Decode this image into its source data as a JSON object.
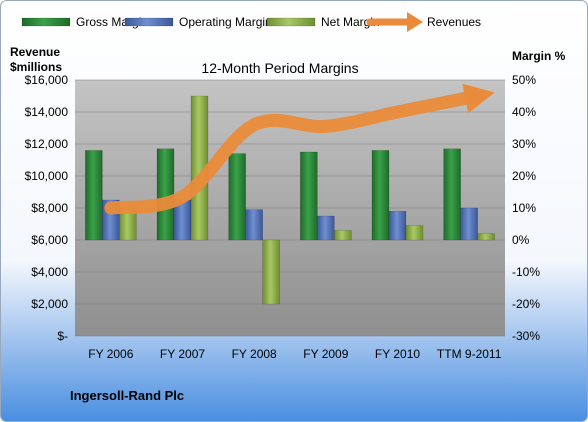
{
  "chart_data": {
    "type": "bar",
    "title": "12-Month Period Margins",
    "company": "Ingersoll-Rand Plc",
    "categories": [
      "FY 2006",
      "FY 2007",
      "FY 2008",
      "FY 2009",
      "FY 2010",
      "TTM 9-2011"
    ],
    "left_axis": {
      "label_line1": "Revenue",
      "label_line2": "$millions",
      "range": [
        0,
        16000
      ],
      "ticks": [
        0,
        2000,
        4000,
        6000,
        8000,
        10000,
        12000,
        14000,
        16000
      ],
      "tick_labels": [
        "$-",
        "$2,000",
        "$4,000",
        "$6,000",
        "$8,000",
        "$10,000",
        "$12,000",
        "$14,000",
        "$16,000"
      ]
    },
    "right_axis": {
      "label": "Margin %",
      "range": [
        -30,
        50
      ],
      "ticks": [
        -30,
        -20,
        -10,
        0,
        10,
        20,
        30,
        40,
        50
      ],
      "tick_labels": [
        "-30%",
        "-20%",
        "-10%",
        "0%",
        "10%",
        "20%",
        "30%",
        "40%",
        "50%"
      ]
    },
    "series": [
      {
        "name": "Gross Margin",
        "axis": "right",
        "kind": "bar",
        "values": [
          28,
          28.5,
          27,
          27.5,
          28,
          28.5
        ]
      },
      {
        "name": "Operating Margin",
        "axis": "right",
        "kind": "bar",
        "values": [
          12.5,
          12.5,
          9.5,
          7.5,
          9,
          10
        ]
      },
      {
        "name": "Net Margin",
        "axis": "right",
        "kind": "bar",
        "values": [
          10,
          45,
          -20,
          3,
          4.5,
          2
        ]
      },
      {
        "name": "Revenues",
        "axis": "left",
        "kind": "line",
        "values": [
          8000,
          8700,
          13200,
          13100,
          14000,
          14900
        ]
      }
    ],
    "legend_position": "top",
    "colors": {
      "gross": "#2e8b3a",
      "operating": "#4f6fb3",
      "net": "#8fb04a",
      "revenue": "#e98b3a",
      "plot_top": "#c2c2c2",
      "plot_bottom": "#8f8f8f",
      "bg_top": "#ffffff",
      "bg_bottom": "#4a8ee0"
    }
  }
}
